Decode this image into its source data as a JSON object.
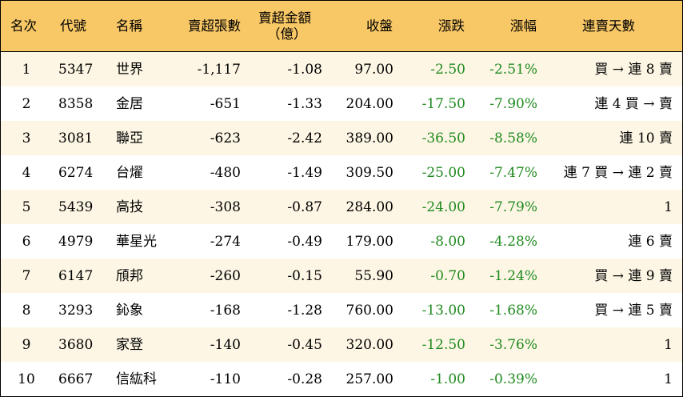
{
  "table": {
    "headers": {
      "rank": "名次",
      "code": "代號",
      "name": "名稱",
      "sell_lots": "賣超張數",
      "sell_amount_line1": "賣超金額",
      "sell_amount_line2": "（億）",
      "close": "收盤",
      "change": "漲跌",
      "change_pct": "漲幅",
      "streak": "連賣天數"
    },
    "rows": [
      {
        "rank": "1",
        "code": "5347",
        "name": "世界",
        "sell_lots": "-1,117",
        "sell_amount": "-1.08",
        "close": "97.00",
        "change": "-2.50",
        "change_pct": "-2.51%",
        "streak": "買 → 連 8 賣"
      },
      {
        "rank": "2",
        "code": "8358",
        "name": "金居",
        "sell_lots": "-651",
        "sell_amount": "-1.33",
        "close": "204.00",
        "change": "-17.50",
        "change_pct": "-7.90%",
        "streak": "連 4 買 → 賣"
      },
      {
        "rank": "3",
        "code": "3081",
        "name": "聯亞",
        "sell_lots": "-623",
        "sell_amount": "-2.42",
        "close": "389.00",
        "change": "-36.50",
        "change_pct": "-8.58%",
        "streak": "連 10 賣"
      },
      {
        "rank": "4",
        "code": "6274",
        "name": "台燿",
        "sell_lots": "-480",
        "sell_amount": "-1.49",
        "close": "309.50",
        "change": "-25.00",
        "change_pct": "-7.47%",
        "streak": "連 7 買 → 連 2 賣"
      },
      {
        "rank": "5",
        "code": "5439",
        "name": "高技",
        "sell_lots": "-308",
        "sell_amount": "-0.87",
        "close": "284.00",
        "change": "-24.00",
        "change_pct": "-7.79%",
        "streak": "1"
      },
      {
        "rank": "6",
        "code": "4979",
        "name": "華星光",
        "sell_lots": "-274",
        "sell_amount": "-0.49",
        "close": "179.00",
        "change": "-8.00",
        "change_pct": "-4.28%",
        "streak": "連 6 賣"
      },
      {
        "rank": "7",
        "code": "6147",
        "name": "頎邦",
        "sell_lots": "-260",
        "sell_amount": "-0.15",
        "close": "55.90",
        "change": "-0.70",
        "change_pct": "-1.24%",
        "streak": "買 → 連 9 賣"
      },
      {
        "rank": "8",
        "code": "3293",
        "name": "鈊象",
        "sell_lots": "-168",
        "sell_amount": "-1.28",
        "close": "760.00",
        "change": "-13.00",
        "change_pct": "-1.68%",
        "streak": "買 → 連 5 賣"
      },
      {
        "rank": "9",
        "code": "3680",
        "name": "家登",
        "sell_lots": "-140",
        "sell_amount": "-0.45",
        "close": "320.00",
        "change": "-12.50",
        "change_pct": "-3.76%",
        "streak": "1"
      },
      {
        "rank": "10",
        "code": "6667",
        "name": "信紘科",
        "sell_lots": "-110",
        "sell_amount": "-0.28",
        "close": "257.00",
        "change": "-1.00",
        "change_pct": "-0.39%",
        "streak": "1"
      }
    ]
  },
  "colors": {
    "header_bg": "#f8c766",
    "odd_row_bg": "#fdf6e4",
    "even_row_bg": "#ffffff",
    "negative_change": "#1f8a1f"
  }
}
